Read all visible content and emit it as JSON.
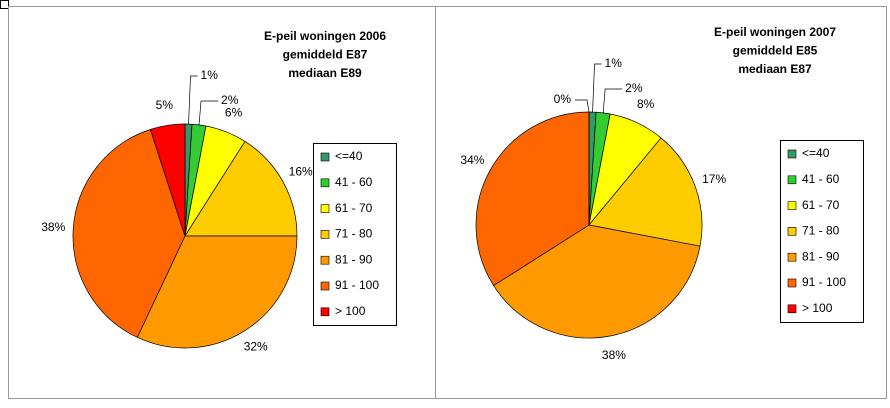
{
  "chart_data": [
    {
      "type": "pie",
      "title": [
        "E-peil woningen 2006",
        "gemiddeld E87",
        "mediaan E89"
      ],
      "categories": [
        "<=40",
        "41 - 60",
        "61 - 70",
        "71 - 80",
        "81 - 90",
        "91 - 100",
        "> 100"
      ],
      "values": [
        1,
        2,
        6,
        16,
        32,
        38,
        5
      ],
      "value_labels": [
        "1%",
        "2%",
        "6%",
        "16%",
        "32%",
        "38%",
        "5%"
      ],
      "colors": [
        "#339966",
        "#33cc33",
        "#ffff00",
        "#ffcc00",
        "#ff9900",
        "#ff6600",
        "#ff0000"
      ]
    },
    {
      "type": "pie",
      "title": [
        "E-peil woningen 2007",
        "gemiddeld E85",
        "mediaan E87"
      ],
      "categories": [
        "<=40",
        "41 - 60",
        "61 - 70",
        "71 - 80",
        "81 - 90",
        "91 - 100",
        "> 100"
      ],
      "values": [
        1,
        2,
        8,
        17,
        38,
        34,
        0
      ],
      "value_labels": [
        "1%",
        "2%",
        "8%",
        "17%",
        "38%",
        "34%",
        "0%"
      ],
      "colors": [
        "#339966",
        "#33cc33",
        "#ffff00",
        "#ffcc00",
        "#ff9900",
        "#ff6600",
        "#ff0000"
      ]
    }
  ]
}
